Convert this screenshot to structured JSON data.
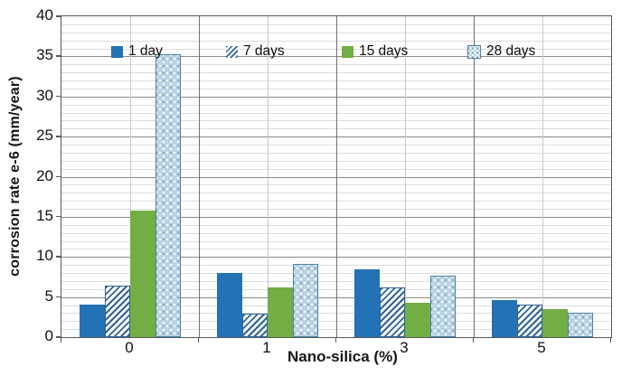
{
  "chart_data": {
    "type": "bar",
    "title": "",
    "xlabel": "Nano-silica (%)",
    "ylabel": "corrosion rate e-6 (mm/year)",
    "categories": [
      "0",
      "1",
      "3",
      "5"
    ],
    "series": [
      {
        "name": "1 day",
        "values": [
          4.1,
          8.0,
          8.4,
          4.6
        ]
      },
      {
        "name": "7 days",
        "values": [
          6.4,
          2.9,
          6.2,
          4.1
        ]
      },
      {
        "name": "15 days",
        "values": [
          15.8,
          6.2,
          4.3,
          3.5
        ]
      },
      {
        "name": "28 days",
        "values": [
          35.3,
          9.1,
          7.7,
          3.0
        ]
      }
    ],
    "ylim": [
      0,
      40
    ],
    "y_major_step": 5,
    "y_minor_step": 1,
    "y_tick_labels": [
      "0",
      "5",
      "10",
      "15",
      "20",
      "25",
      "30",
      "35",
      "40"
    ],
    "grid": true,
    "legend_position": "top-inside"
  },
  "colors": {
    "series_1day_solid_blue": "#2272b5",
    "series_7days_hatch_blue": "#2e6399",
    "series_15days_solid_green": "#72ae43",
    "series_28days_dot_fill": "#b9d3e2",
    "series_28days_dot_border": "#4682a6",
    "gridline_minor": "#dcdcdc",
    "gridline_major": "#8a8a8a",
    "plot_border": "#595959",
    "text": "#111111"
  }
}
